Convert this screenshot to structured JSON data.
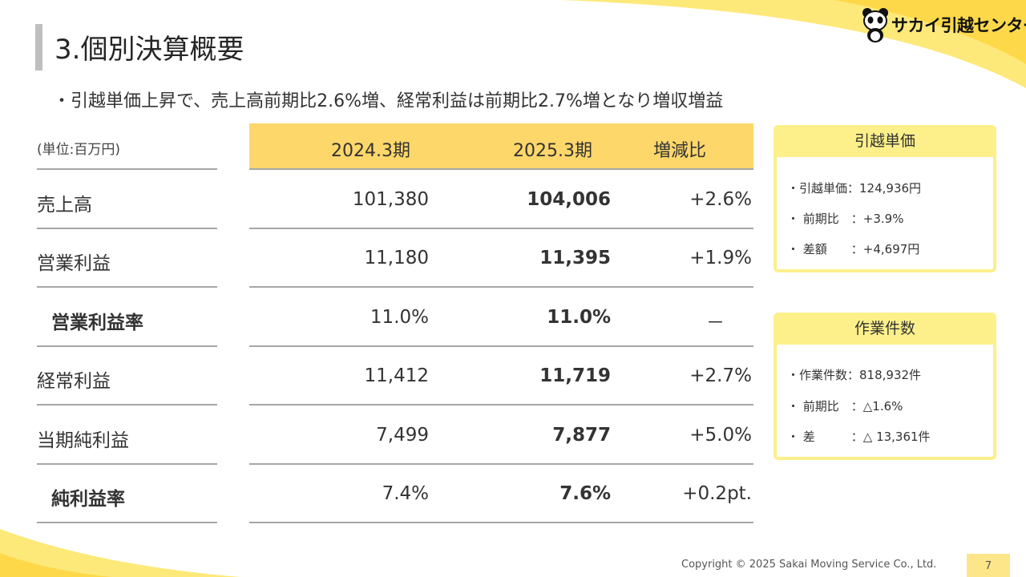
{
  "slide": {
    "title": "3.個別決算概要",
    "subtitle": "・引越単価上昇で、売上高前期比2.6%増、経常利益は前期比2.7%増となり増収増益",
    "logo_text": "サカイ引越センター",
    "footer": "Copyright © 2025 Sakai Moving Service Co., Ltd.",
    "page_number": "7",
    "accent_color": "#fdd76a"
  },
  "table": {
    "unit": "(単位:百万円)",
    "columns": [
      "2024.3期",
      "2025.3期",
      "増減比"
    ],
    "rows": [
      {
        "label": "売上高",
        "prev": "101,380",
        "curr": "104,006",
        "change": "+2.6%"
      },
      {
        "label": "営業利益",
        "prev": "11,180",
        "curr": "11,395",
        "change": "+1.9%"
      },
      {
        "label": "営業利益率",
        "prev": "11.0%",
        "curr": "11.0%",
        "change": "－"
      },
      {
        "label": "経常利益",
        "prev": "11,412",
        "curr": "11,719",
        "change": "+2.7%"
      },
      {
        "label": "当期純利益",
        "prev": "7,499",
        "curr": "7,877",
        "change": "+5.0%"
      },
      {
        "label": "純利益率",
        "prev": "7.4%",
        "curr": "7.6%",
        "change": "+0.2pt."
      }
    ]
  },
  "panels": {
    "unit_price": {
      "title": "引越単価",
      "lines": [
        "・引越単価：124,936円",
        "・ 前期比　：+3.9%",
        "・ 差額　　：+4,697円"
      ]
    },
    "work_count": {
      "title": "作業件数",
      "lines": [
        "・作業件数：818,932件",
        "・ 前期比　：△1.6%",
        "・ 差　　　：△ 13,361件"
      ]
    }
  }
}
